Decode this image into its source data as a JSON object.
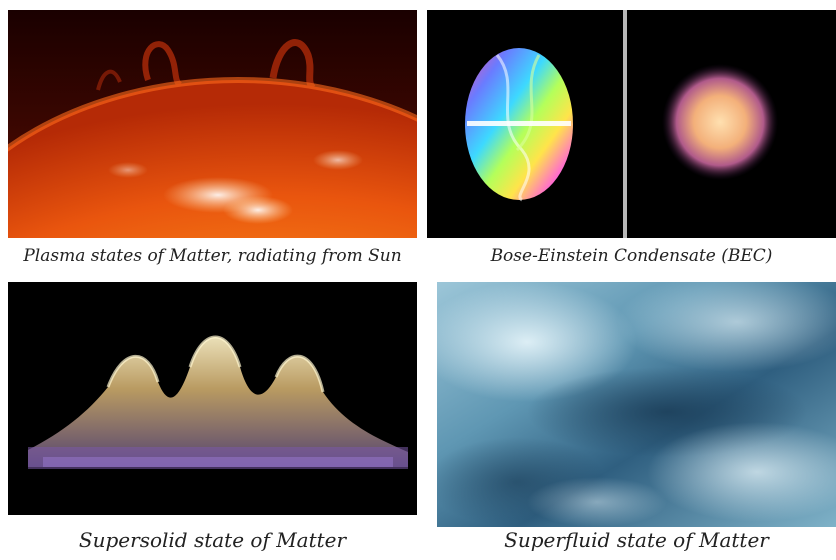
{
  "panels": [
    {
      "caption": "Plasma states of Matter, radiating from Sun",
      "icon": "sun-plasma-photo"
    },
    {
      "caption": "Bose-Einstein Condensate (BEC)",
      "icon": "bec-photo"
    },
    {
      "caption": "Supersolid state of Matter",
      "icon": "supersolid-photo"
    },
    {
      "caption": "Superfluid state of Matter",
      "icon": "superfluid-photo"
    }
  ]
}
